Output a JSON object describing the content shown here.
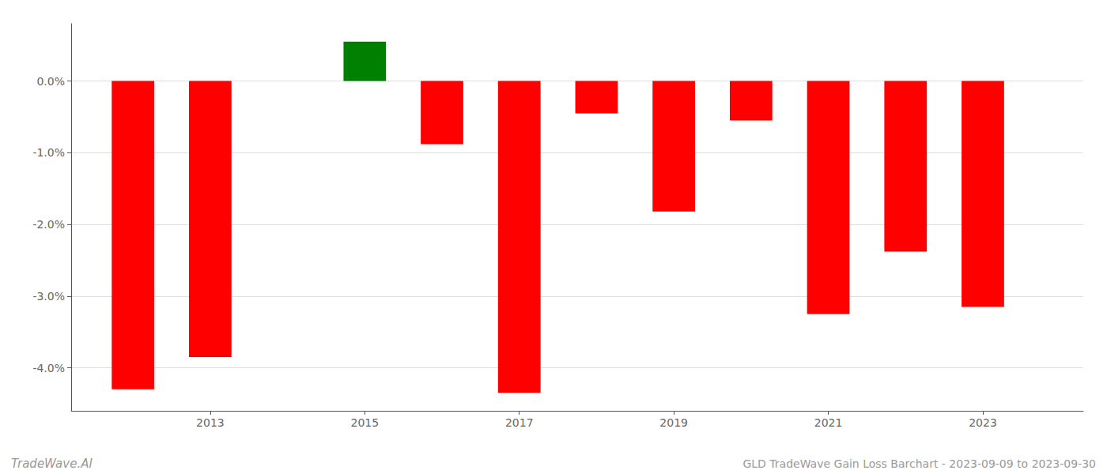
{
  "chart_data": {
    "type": "bar",
    "x": [
      2012,
      2013,
      2015,
      2016,
      2017,
      2018,
      2019,
      2020,
      2021,
      2022,
      2023
    ],
    "values": [
      -4.3,
      -3.85,
      0.55,
      -0.88,
      -4.35,
      -0.45,
      -1.82,
      -0.55,
      -3.25,
      -2.38,
      -3.15
    ],
    "colors": [
      "#ff0000",
      "#ff0000",
      "#008000",
      "#ff0000",
      "#ff0000",
      "#ff0000",
      "#ff0000",
      "#ff0000",
      "#ff0000",
      "#ff0000",
      "#ff0000"
    ],
    "xlim": [
      2011.2,
      2024.3
    ],
    "xticks": [
      2013,
      2015,
      2017,
      2019,
      2021,
      2023
    ],
    "ylim": [
      -4.6,
      0.8
    ],
    "yticks": [
      {
        "value": 0.0,
        "label": "0.0%"
      },
      {
        "value": -1.0,
        "label": "-1.0%"
      },
      {
        "value": -2.0,
        "label": "-2.0%"
      },
      {
        "value": -3.0,
        "label": "-3.0%"
      },
      {
        "value": -4.0,
        "label": "-4.0%"
      }
    ],
    "grid": true,
    "annotations": [
      "TradeWave.AI",
      "GLD TradeWave Gain Loss Barchart - 2023-09-09 to 2023-09-30"
    ]
  }
}
